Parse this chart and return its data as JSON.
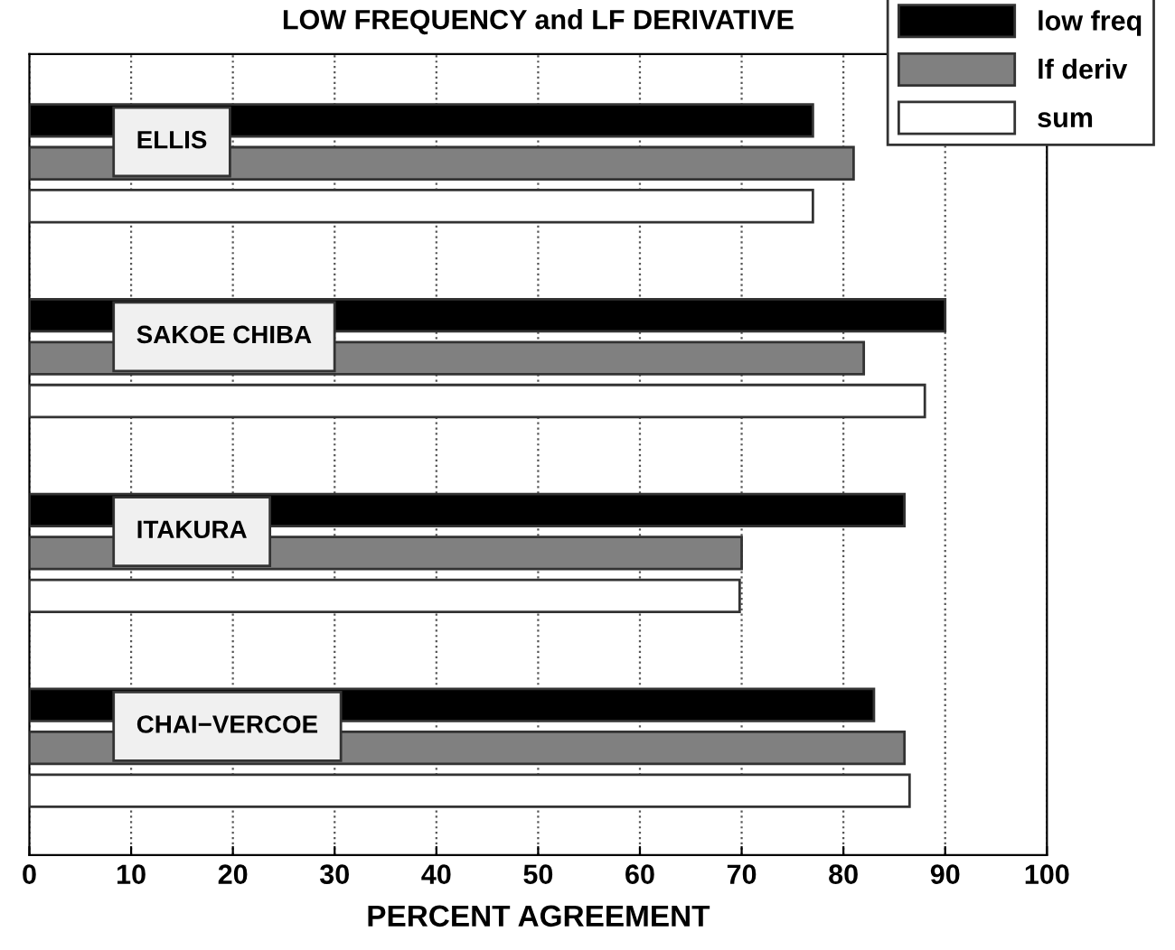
{
  "chart_data": {
    "type": "bar",
    "orientation": "horizontal",
    "title": "LOW FREQUENCY and LF DERIVATIVE",
    "xlabel": "PERCENT AGREEMENT",
    "categories": [
      "ELLIS",
      "SAKOE CHIBA",
      "ITAKURA",
      "CHAI−VERCOE"
    ],
    "series": [
      {
        "name": "low freq",
        "color": "#000000",
        "values": [
          77,
          90,
          86,
          83
        ]
      },
      {
        "name": "lf deriv",
        "color": "#808080",
        "values": [
          81,
          82,
          70,
          86
        ]
      },
      {
        "name": "sum",
        "color": "#ffffff",
        "values": [
          77,
          88,
          69.8,
          86.5
        ]
      }
    ],
    "xlim": [
      0,
      100
    ],
    "xticks": [
      0,
      10,
      20,
      30,
      40,
      50,
      60,
      70,
      80,
      90,
      100
    ],
    "grid": "x",
    "legend": "top right",
    "tick_labels": "x"
  }
}
